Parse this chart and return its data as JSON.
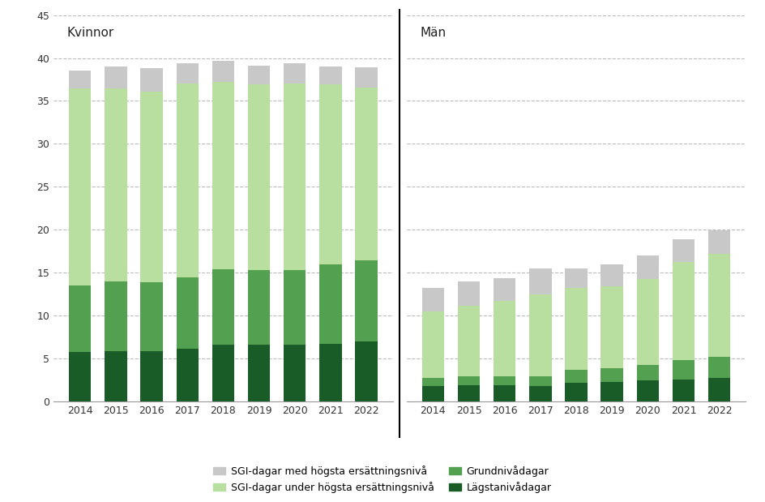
{
  "years": [
    2014,
    2015,
    2016,
    2017,
    2018,
    2019,
    2020,
    2021,
    2022
  ],
  "kvinnor": {
    "lagstaniva": [
      5.8,
      5.9,
      5.9,
      6.2,
      6.6,
      6.6,
      6.6,
      6.7,
      7.0
    ],
    "grundniva": [
      7.7,
      8.1,
      8.0,
      8.3,
      8.8,
      8.7,
      8.7,
      9.3,
      9.4
    ],
    "sgi_under": [
      23.0,
      22.5,
      22.2,
      22.5,
      21.8,
      21.6,
      21.7,
      20.9,
      20.2
    ],
    "sgi_hogsta": [
      2.0,
      2.5,
      2.7,
      2.4,
      2.5,
      2.2,
      2.4,
      2.1,
      2.3
    ]
  },
  "man": {
    "lagstaniva": [
      1.8,
      1.9,
      1.9,
      1.8,
      2.2,
      2.3,
      2.5,
      2.6,
      2.8
    ],
    "grundniva": [
      1.0,
      1.0,
      1.0,
      1.1,
      1.5,
      1.6,
      1.8,
      2.2,
      2.4
    ],
    "sgi_under": [
      7.7,
      8.3,
      8.8,
      9.6,
      9.5,
      9.5,
      10.0,
      11.5,
      12.0
    ],
    "sgi_hogsta": [
      2.7,
      2.8,
      2.7,
      3.0,
      2.3,
      2.6,
      2.7,
      2.6,
      2.7
    ]
  },
  "colors": {
    "lagstaniva": "#1a5c28",
    "grundniva": "#52a050",
    "sgi_under": "#b8dfa0",
    "sgi_hogsta": "#c8c8c8"
  },
  "legend_labels": {
    "sgi_hogsta": "SGI-dagar med högsta ersättningsnivå",
    "sgi_under": "SGI-dagar under högsta ersättningsnivå",
    "grundniva": "Grundnivådagar",
    "lagstaniva": "Lägstanivådagar"
  },
  "label_kvinnor": "Kvinnor",
  "label_man": "Män",
  "ylim": [
    0,
    45
  ],
  "yticks": [
    0,
    5,
    10,
    15,
    20,
    25,
    30,
    35,
    40,
    45
  ],
  "bg_color": "#ffffff"
}
